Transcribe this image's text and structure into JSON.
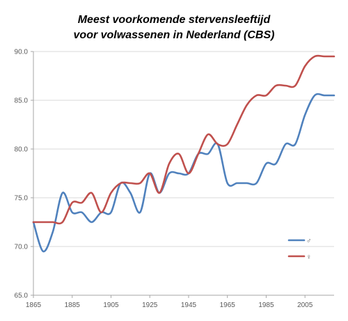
{
  "title_line1": "Meest voorkomende stervensleeftijd",
  "title_line2": "voor volwassenen in Nederland (CBS)",
  "colors": {
    "male": "#4F81BD",
    "female": "#C0504D",
    "grid": "#D9D9D9",
    "axis": "#A6A6A6"
  },
  "chart_data": {
    "type": "line",
    "title": "Meest voorkomende stervensleeftijd voor volwassenen in Nederland (CBS)",
    "xlabel": "",
    "ylabel": "",
    "xlim": [
      1865,
      2020
    ],
    "ylim": [
      65.0,
      90.0
    ],
    "x_ticks": [
      1865,
      1885,
      1905,
      1925,
      1945,
      1965,
      1985,
      2005
    ],
    "x_tick_labels": [
      "1865",
      "1885",
      "1905",
      "1925",
      "1945",
      "1965",
      "1985",
      "2005"
    ],
    "y_ticks": [
      65.0,
      70.0,
      75.0,
      80.0,
      85.0,
      90.0
    ],
    "y_tick_labels": [
      "65.0",
      "70.0",
      "75.0",
      "80.0",
      "85.0",
      "90.0"
    ],
    "grid": "horizontal",
    "legend_position": "right",
    "series": [
      {
        "name": "♂",
        "color": "#4F81BD",
        "x": [
          1865,
          1870,
          1875,
          1880,
          1885,
          1890,
          1895,
          1900,
          1905,
          1910,
          1915,
          1920,
          1925,
          1930,
          1935,
          1940,
          1945,
          1950,
          1955,
          1960,
          1965,
          1970,
          1975,
          1980,
          1985,
          1990,
          1995,
          2000,
          2005,
          2010,
          2015,
          2020
        ],
        "y": [
          72.5,
          69.5,
          71.5,
          75.5,
          73.5,
          73.5,
          72.5,
          73.5,
          73.5,
          76.5,
          75.5,
          73.5,
          77.5,
          75.5,
          77.5,
          77.5,
          77.5,
          79.5,
          79.5,
          80.5,
          76.5,
          76.5,
          76.5,
          76.5,
          78.5,
          78.5,
          80.5,
          80.5,
          83.5,
          85.5,
          85.5,
          85.5
        ]
      },
      {
        "name": "♀",
        "color": "#C0504D",
        "x": [
          1865,
          1870,
          1875,
          1880,
          1885,
          1890,
          1895,
          1900,
          1905,
          1910,
          1915,
          1920,
          1925,
          1930,
          1935,
          1940,
          1945,
          1950,
          1955,
          1960,
          1965,
          1970,
          1975,
          1980,
          1985,
          1990,
          1995,
          2000,
          2005,
          2010,
          2015,
          2020
        ],
        "y": [
          72.5,
          72.5,
          72.5,
          72.5,
          74.5,
          74.5,
          75.5,
          73.5,
          75.5,
          76.5,
          76.5,
          76.5,
          77.5,
          75.5,
          78.5,
          79.5,
          77.5,
          79.5,
          81.5,
          80.5,
          80.5,
          82.5,
          84.5,
          85.5,
          85.5,
          86.5,
          86.5,
          86.5,
          88.5,
          89.5,
          89.5,
          89.5
        ]
      }
    ]
  }
}
